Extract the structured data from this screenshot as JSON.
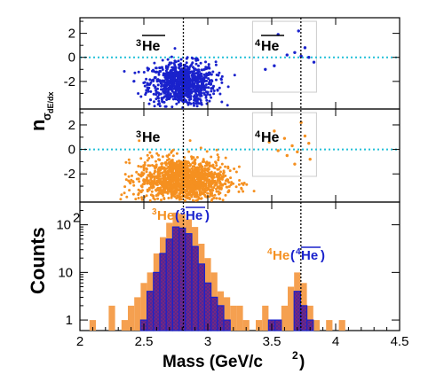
{
  "chart_data": [
    {
      "panel": "top",
      "type": "scatter",
      "x_range": [
        2.0,
        4.5
      ],
      "y_range": [
        -4.3,
        3.3
      ],
      "y_ticks": [
        "-2",
        "0",
        "2"
      ],
      "label": "3He-bar",
      "label_sup": "3",
      "label_main": "He",
      "label2_sup": "4",
      "label2_main": "He",
      "marker_color": "#1a22cc",
      "reference_line_y": 0,
      "reference_line_color": "#22c0d8",
      "selection_box": {
        "x": [
          3.35,
          3.85
        ],
        "y": [
          -2.9,
          3.0
        ]
      },
      "series": [
        {
          "name": "3He-bar",
          "cluster": {
            "x_center": 2.8,
            "x_sigma": 0.13,
            "y_center": -2.2,
            "y_sigma": 0.9,
            "n": 900
          }
        },
        {
          "name": "4He-bar",
          "points": [
            {
              "x": 3.55,
              "y": 1.9
            },
            {
              "x": 3.62,
              "y": 0.2
            },
            {
              "x": 3.68,
              "y": 0.4
            },
            {
              "x": 3.71,
              "y": 2.2
            },
            {
              "x": 3.73,
              "y": 0.1
            },
            {
              "x": 3.76,
              "y": 0.8
            },
            {
              "x": 3.79,
              "y": 0.0
            },
            {
              "x": 3.52,
              "y": -0.7
            },
            {
              "x": 3.45,
              "y": -1.0
            },
            {
              "x": 3.83,
              "y": -0.4
            }
          ]
        }
      ]
    },
    {
      "panel": "middle",
      "type": "scatter",
      "x_range": [
        2.0,
        4.5
      ],
      "y_range": [
        -4.3,
        3.3
      ],
      "y_ticks": [
        "-2",
        "0",
        "2"
      ],
      "label_sup": "3",
      "label_main": "He",
      "label2_sup": "4",
      "label2_main": "He",
      "marker_color": "#f59020",
      "reference_line_y": 0,
      "reference_line_color": "#22c0d8",
      "selection_box": {
        "x": [
          3.35,
          3.85
        ],
        "y": [
          -2.2,
          3.0
        ]
      },
      "series": [
        {
          "name": "3He",
          "cluster": {
            "x_center": 2.8,
            "x_sigma": 0.17,
            "y_center": -2.5,
            "y_sigma": 0.9,
            "n": 1400
          }
        },
        {
          "name": "4He",
          "points": [
            {
              "x": 3.48,
              "y": 0.6
            },
            {
              "x": 3.55,
              "y": -0.1
            },
            {
              "x": 3.6,
              "y": 0.9
            },
            {
              "x": 3.66,
              "y": 0.3
            },
            {
              "x": 3.7,
              "y": -0.2
            },
            {
              "x": 3.73,
              "y": 2.2
            },
            {
              "x": 3.76,
              "y": 1.1
            },
            {
              "x": 3.79,
              "y": 0.5
            },
            {
              "x": 3.68,
              "y": -1.2
            },
            {
              "x": 3.62,
              "y": -0.5
            },
            {
              "x": 3.52,
              "y": 1.5
            },
            {
              "x": 3.8,
              "y": -0.8
            }
          ]
        }
      ]
    },
    {
      "panel": "bottom",
      "type": "bar",
      "scale": "log",
      "x_range": [
        2.0,
        4.5
      ],
      "y_range": [
        0.6,
        300
      ],
      "y_ticks": [
        "1",
        "10",
        "10^2"
      ],
      "bin_width": 0.05,
      "label_3He": "He",
      "label_3He_sup": "3",
      "label_3He_bar": "He",
      "label_3He_bar_sup": "3",
      "label_4He": "He",
      "label_4He_sup": "4",
      "label_4He_bar": "He",
      "label_4He_bar_sup": "4",
      "series": [
        {
          "name": "3He+4He",
          "color": "#f5a050",
          "bins": [
            {
              "x": 2.1,
              "value": 1
            },
            {
              "x": 2.25,
              "value": 2
            },
            {
              "x": 2.35,
              "value": 1
            },
            {
              "x": 2.4,
              "value": 2
            },
            {
              "x": 2.45,
              "value": 3
            },
            {
              "x": 2.5,
              "value": 6
            },
            {
              "x": 2.55,
              "value": 10
            },
            {
              "x": 2.6,
              "value": 25
            },
            {
              "x": 2.65,
              "value": 55
            },
            {
              "x": 2.7,
              "value": 110
            },
            {
              "x": 2.75,
              "value": 180
            },
            {
              "x": 2.8,
              "value": 170
            },
            {
              "x": 2.85,
              "value": 130
            },
            {
              "x": 2.9,
              "value": 90
            },
            {
              "x": 2.95,
              "value": 40
            },
            {
              "x": 3.0,
              "value": 20
            },
            {
              "x": 3.05,
              "value": 10
            },
            {
              "x": 3.1,
              "value": 4
            },
            {
              "x": 3.15,
              "value": 3
            },
            {
              "x": 3.2,
              "value": 2
            },
            {
              "x": 3.25,
              "value": 2
            },
            {
              "x": 3.3,
              "value": 1
            },
            {
              "x": 3.4,
              "value": 1
            },
            {
              "x": 3.45,
              "value": 2
            },
            {
              "x": 3.5,
              "value": 1
            },
            {
              "x": 3.6,
              "value": 2
            },
            {
              "x": 3.65,
              "value": 5
            },
            {
              "x": 3.7,
              "value": 10
            },
            {
              "x": 3.75,
              "value": 6
            },
            {
              "x": 3.8,
              "value": 2
            },
            {
              "x": 3.85,
              "value": 1
            },
            {
              "x": 3.95,
              "value": 1
            },
            {
              "x": 4.05,
              "value": 1
            }
          ]
        },
        {
          "name": "3He-bar+4He-bar",
          "color": "#7a2580",
          "outline": "#1a22cc",
          "bins": [
            {
              "x": 2.5,
              "value": 1
            },
            {
              "x": 2.55,
              "value": 4
            },
            {
              "x": 2.6,
              "value": 10
            },
            {
              "x": 2.65,
              "value": 25
            },
            {
              "x": 2.7,
              "value": 50
            },
            {
              "x": 2.75,
              "value": 90
            },
            {
              "x": 2.8,
              "value": 85
            },
            {
              "x": 2.85,
              "value": 65
            },
            {
              "x": 2.9,
              "value": 35
            },
            {
              "x": 2.95,
              "value": 15
            },
            {
              "x": 3.0,
              "value": 6
            },
            {
              "x": 3.05,
              "value": 3
            },
            {
              "x": 3.1,
              "value": 2
            },
            {
              "x": 3.15,
              "value": 1
            },
            {
              "x": 3.5,
              "value": 1
            },
            {
              "x": 3.55,
              "value": 1
            },
            {
              "x": 3.7,
              "value": 4
            },
            {
              "x": 3.75,
              "value": 2
            },
            {
              "x": 3.8,
              "value": 1
            }
          ]
        }
      ]
    }
  ],
  "axes": {
    "x_ticks": [
      "2",
      "2.5",
      "3",
      "3.5",
      "4",
      "4.5"
    ],
    "x_label": "Mass (GeV/c",
    "x_label_sup": "2",
    "x_label_end": ")",
    "y_label_upper_main": "n",
    "y_label_upper_sub": "σ",
    "y_label_upper_subsub": "dE/dx",
    "y_label_lower": "Counts",
    "mass_lines": [
      2.809,
      3.728
    ]
  },
  "colors": {
    "text_3He": "#f59020",
    "text_anti": "#1a22cc",
    "frame": "#000000"
  }
}
